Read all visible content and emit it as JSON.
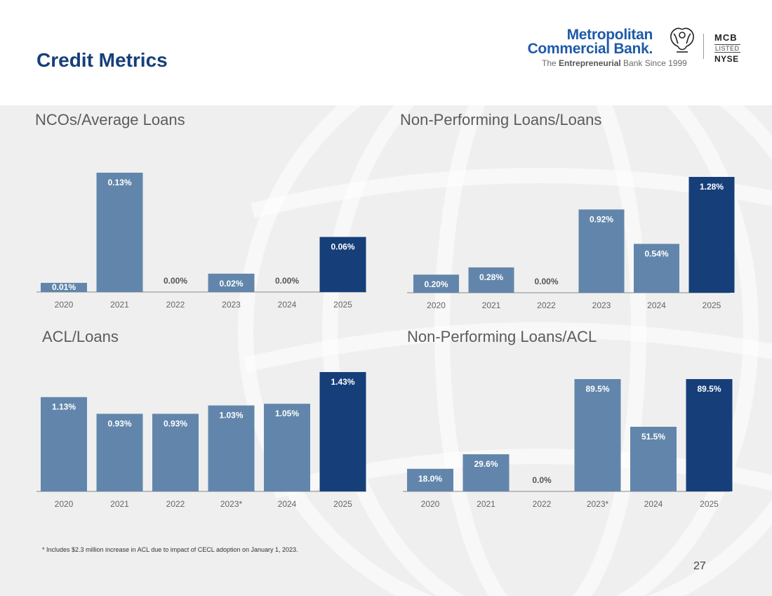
{
  "page": {
    "title": "Credit Metrics",
    "footnote": "* Includes $2.3 million increase in ACL due to impact of CECL adoption on January 1, 2023.",
    "page_number": "27"
  },
  "logo": {
    "name_line1": "Metropolitan",
    "name_line2": "Commercial Bank.",
    "tagline_pre": "The ",
    "tagline_bold": "Entrepreneurial",
    "tagline_post": " Bank Since 1999",
    "exchange_ticker": "MCB",
    "exchange_listed": "LISTED",
    "exchange_name": "NYSE",
    "icon": "eagle-icon"
  },
  "colors": {
    "bar": "#6286ab",
    "highlight_bar": "#163f7a",
    "title": "#163f7a",
    "label_on_bar": "#ffffff",
    "label_zero": "#555555",
    "axis": "#8a8a8a"
  },
  "chart_data": [
    {
      "type": "bar",
      "title": "NCOs/Average Loans",
      "categories": [
        "2020",
        "2021",
        "2022",
        "2023",
        "2024",
        "2025"
      ],
      "values": [
        0.01,
        0.13,
        0.0,
        0.02,
        0.0,
        0.06
      ],
      "labels": [
        "0.01%",
        "0.13%",
        "0.00%",
        "0.02%",
        "0.00%",
        "0.06%"
      ],
      "highlight_index": 5,
      "ylim": [
        0,
        0.13
      ]
    },
    {
      "type": "bar",
      "title": "Non-Performing Loans/Loans",
      "categories": [
        "2020",
        "2021",
        "2022",
        "2023",
        "2024",
        "2025"
      ],
      "values": [
        0.2,
        0.28,
        0.0,
        0.92,
        0.54,
        1.28
      ],
      "labels": [
        "0.20%",
        "0.28%",
        "0.00%",
        "0.92%",
        "0.54%",
        "1.28%"
      ],
      "highlight_index": 5,
      "ylim": [
        0,
        1.28
      ]
    },
    {
      "type": "bar",
      "title": "ACL/Loans",
      "categories": [
        "2020",
        "2021",
        "2022",
        "2023*",
        "2024",
        "2025"
      ],
      "values": [
        1.13,
        0.93,
        0.93,
        1.03,
        1.05,
        1.43
      ],
      "labels": [
        "1.13%",
        "0.93%",
        "0.93%",
        "1.03%",
        "1.05%",
        "1.43%"
      ],
      "highlight_index": 5,
      "ylim": [
        0,
        1.43
      ]
    },
    {
      "type": "bar",
      "title": "Non-Performing Loans/ACL",
      "categories": [
        "2020",
        "2021",
        "2022",
        "2023*",
        "2024",
        "2025"
      ],
      "values": [
        18.0,
        29.6,
        0.0,
        89.5,
        51.5,
        89.5
      ],
      "labels": [
        "18.0%",
        "29.6%",
        "0.0%",
        "89.5%",
        "51.5%",
        "89.5%"
      ],
      "highlight_index": 5,
      "ylim": [
        0,
        89.5
      ]
    }
  ]
}
